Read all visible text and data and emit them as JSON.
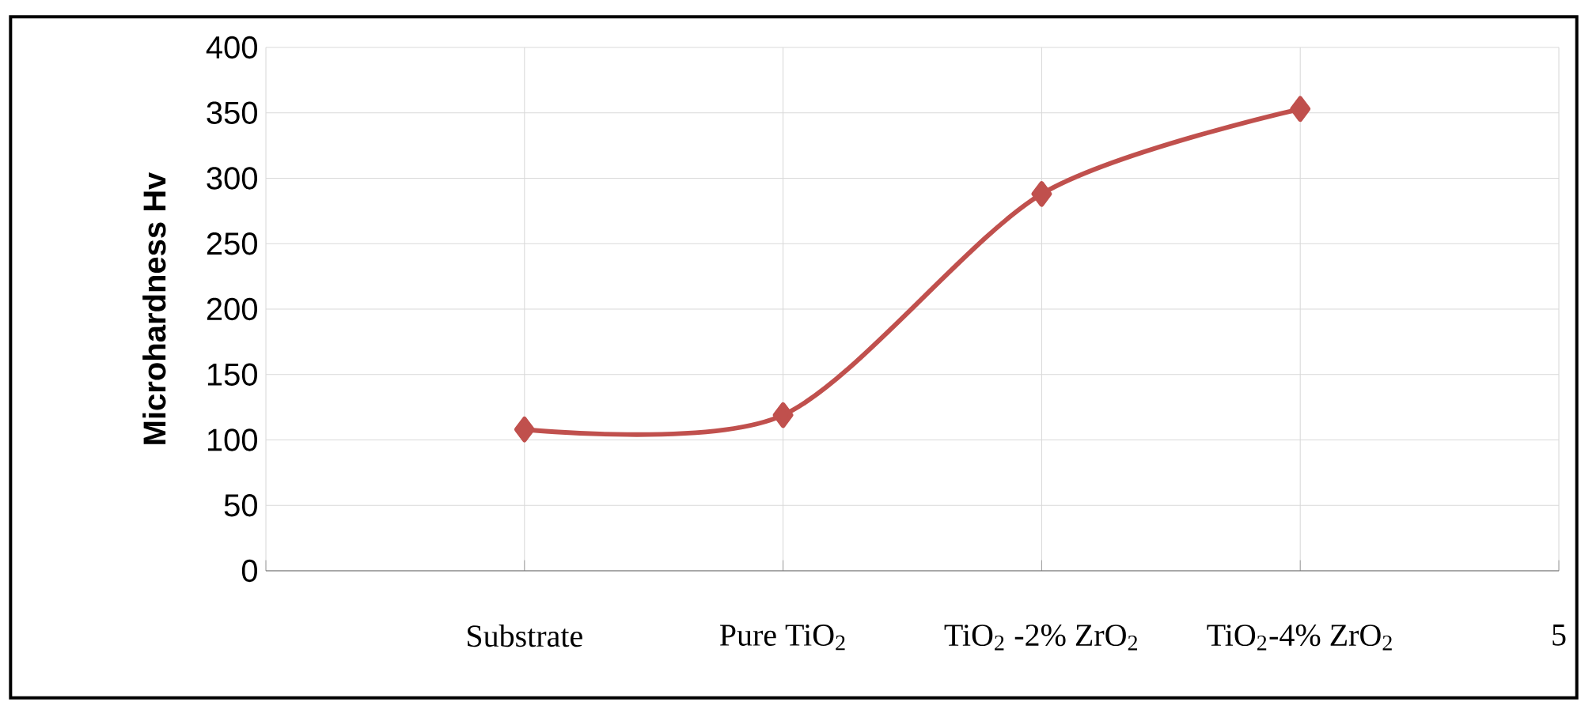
{
  "chart_data": {
    "type": "line",
    "ylabel": "Microhardness Hv",
    "categories": [
      null,
      "Substrate",
      "Pure TiO$_{2}$",
      "TiO$_{2}$ -2% ZrO$_{2}$",
      "TiO$_{2}$-4% ZrO$_{2}$",
      "5"
    ],
    "series": [
      {
        "color": "#c0504d",
        "values": [
          null,
          108,
          119,
          288,
          353,
          null
        ]
      }
    ],
    "ylim": [
      0,
      400
    ],
    "yticks": [
      0,
      50,
      100,
      150,
      200,
      250,
      300,
      350,
      400
    ],
    "grid": true,
    "marker": "diamond",
    "line_style": "solid"
  }
}
